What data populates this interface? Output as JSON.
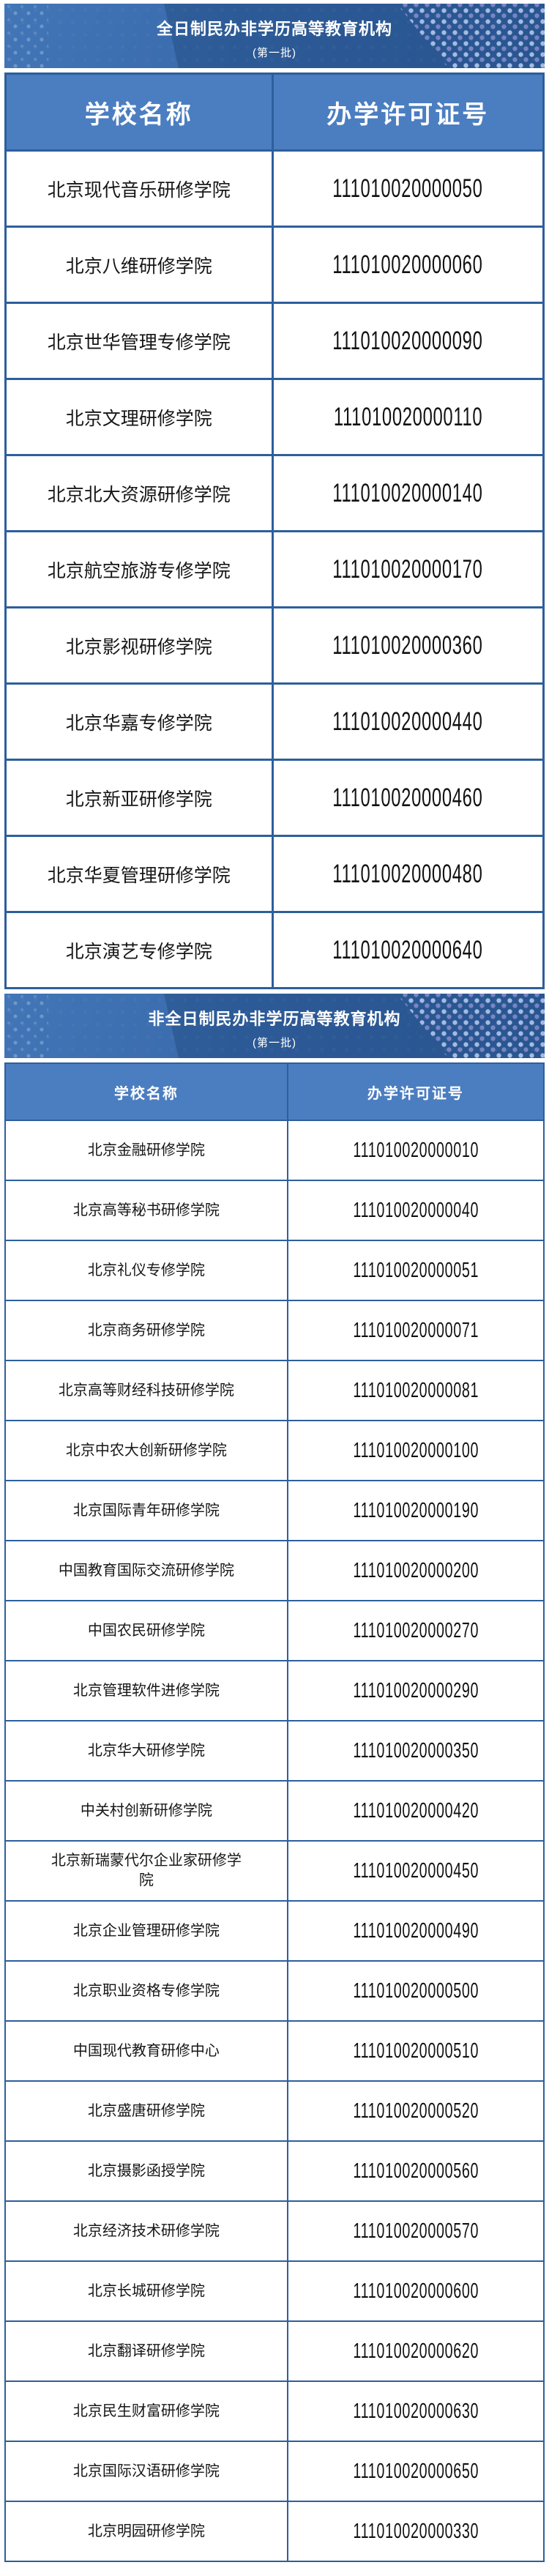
{
  "colors": {
    "banner_background": "#2c5a96",
    "banner_light_panel": "#3d6fb0",
    "table_header_background": "#4b7ec0",
    "table_border": "#2d5f9c",
    "cell_text": "#161616",
    "banner_text": "#ffffff"
  },
  "sections": [
    {
      "banner": {
        "title": "全日制民办非学历高等教育机构",
        "subtitle": "(第一批)"
      },
      "table": {
        "headers": [
          "学校名称",
          "办学许可证号"
        ],
        "rows": [
          {
            "name": "北京现代音乐研修学院",
            "license": "111010020000050"
          },
          {
            "name": "北京八维研修学院",
            "license": "111010020000060"
          },
          {
            "name": "北京世华管理专修学院",
            "license": "111010020000090"
          },
          {
            "name": "北京文理研修学院",
            "license": "111010020000110"
          },
          {
            "name": "北京北大资源研修学院",
            "license": "111010020000140"
          },
          {
            "name": "北京航空旅游专修学院",
            "license": "111010020000170"
          },
          {
            "name": "北京影视研修学院",
            "license": "111010020000360"
          },
          {
            "name": "北京华嘉专修学院",
            "license": "111010020000440"
          },
          {
            "name": "北京新亚研修学院",
            "license": "111010020000460"
          },
          {
            "name": "北京华夏管理研修学院",
            "license": "111010020000480"
          },
          {
            "name": "北京演艺专修学院",
            "license": "111010020000640"
          }
        ]
      }
    },
    {
      "banner": {
        "title": "非全日制民办非学历高等教育机构",
        "subtitle": "(第一批)"
      },
      "table": {
        "headers": [
          "学校名称",
          "办学许可证号"
        ],
        "rows": [
          {
            "name": "北京金融研修学院",
            "license": "111010020000010"
          },
          {
            "name": "北京高等秘书研修学院",
            "license": "111010020000040"
          },
          {
            "name": "北京礼仪专修学院",
            "license": "111010020000051"
          },
          {
            "name": "北京商务研修学院",
            "license": "111010020000071"
          },
          {
            "name": "北京高等财经科技研修学院",
            "license": "111010020000081"
          },
          {
            "name": "北京中农大创新研修学院",
            "license": "111010020000100"
          },
          {
            "name": "北京国际青年研修学院",
            "license": "111010020000190"
          },
          {
            "name": "中国教育国际交流研修学院",
            "license": "111010020000200"
          },
          {
            "name": "中国农民研修学院",
            "license": "111010020000270"
          },
          {
            "name": "北京管理软件进修学院",
            "license": "111010020000290"
          },
          {
            "name": "北京华大研修学院",
            "license": "111010020000350"
          },
          {
            "name": "中关村创新研修学院",
            "license": "111010020000420"
          },
          {
            "name": "北京新瑞蒙代尔企业家研修学院",
            "license": "111010020000450"
          },
          {
            "name": "北京企业管理研修学院",
            "license": "111010020000490"
          },
          {
            "name": "北京职业资格专修学院",
            "license": "111010020000500"
          },
          {
            "name": "中国现代教育研修中心",
            "license": "111010020000510"
          },
          {
            "name": "北京盛唐研修学院",
            "license": "111010020000520"
          },
          {
            "name": "北京摄影函授学院",
            "license": "111010020000560"
          },
          {
            "name": "北京经济技术研修学院",
            "license": "111010020000570"
          },
          {
            "name": "北京长城研修学院",
            "license": "111010020000600"
          },
          {
            "name": "北京翻译研修学院",
            "license": "111010020000620"
          },
          {
            "name": "北京民生财富研修学院",
            "license": "111010020000630"
          },
          {
            "name": "北京国际汉语研修学院",
            "license": "111010020000650"
          },
          {
            "name": "北京明园研修学院",
            "license": "111010020000330"
          }
        ]
      }
    }
  ]
}
